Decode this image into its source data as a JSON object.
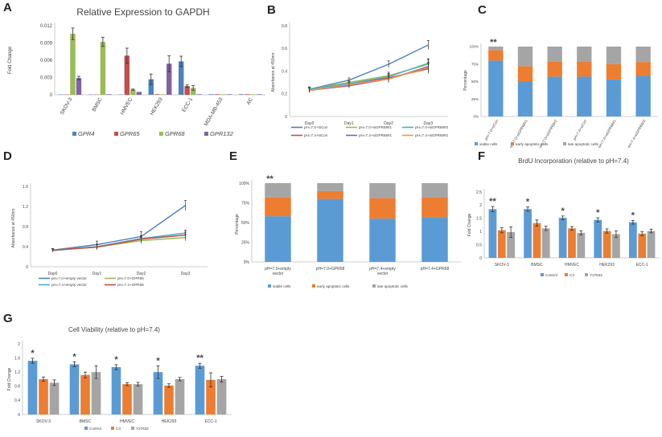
{
  "colors": {
    "blue": "#4e81bd",
    "red": "#c0504d",
    "green": "#9bbb59",
    "purple": "#8064a2",
    "orange": "#ed7d31",
    "gray": "#a5a5a5",
    "teal": "#4bacc6",
    "lgreen": "#70ad47",
    "axis": "#bfbfbf",
    "text": "#444444"
  },
  "chart_data": [
    {
      "panel": "A",
      "type": "bar",
      "title": "Relative Expression to GAPDH",
      "ylabel": "Fold Change",
      "ylim": [
        0,
        0.012
      ],
      "yticks": [
        0,
        0.003,
        0.006,
        0.009,
        0.012
      ],
      "yticklabels": [
        "0",
        "0.003",
        "0.006",
        "0.009",
        "0.012"
      ],
      "categories": [
        "SKOV-3",
        "BMSC",
        "HMVEC",
        "HEK293",
        "ECC-1",
        "MDA-MB-453",
        "AC"
      ],
      "series": [
        {
          "name": "GPR4",
          "color": "#4e81bd",
          "values": [
            5e-05,
            5e-05,
            5e-05,
            0.0027,
            0.0058,
            0.0001,
            0.0001
          ],
          "errors": [
            0,
            0,
            0,
            0.0009,
            0.0009,
            0,
            0
          ]
        },
        {
          "name": "GPR65",
          "color": "#c0504d",
          "values": [
            5e-05,
            5e-05,
            0.0068,
            0.0001,
            0.0015,
            0.0001,
            0.0001
          ],
          "errors": [
            0,
            0,
            0.0013,
            0,
            0.0002,
            0,
            0
          ]
        },
        {
          "name": "GPR68",
          "color": "#9bbb59",
          "values": [
            0.0106,
            0.0092,
            0.0009,
            0.0001,
            0.0012,
            0.0001,
            0.0001
          ],
          "errors": [
            0.001,
            0.0008,
            0.0001,
            0,
            0.0004,
            0,
            0
          ]
        },
        {
          "name": "GPR132",
          "color": "#8064a2",
          "values": [
            0.0029,
            0.0001,
            0.0005,
            0.0054,
            0.0001,
            0.0001,
            0.0001
          ],
          "errors": [
            0.0003,
            0,
            0,
            0.0014,
            0,
            0,
            0
          ]
        }
      ]
    },
    {
      "panel": "B",
      "type": "line",
      "ylabel": "Absorbance at 450nm",
      "ylim": [
        0,
        0.8
      ],
      "yticks": [
        0,
        0.2,
        0.4,
        0.6,
        0.8
      ],
      "yticklabels": [
        "0",
        "0.2",
        "0.4",
        "0.6",
        "0.8"
      ],
      "categories": [
        "Day0",
        "Day1",
        "Day2",
        "Day3"
      ],
      "series": [
        {
          "name": "pH=7.0+siCon",
          "color": "#4e81bd",
          "values": [
            0.24,
            0.32,
            0.46,
            0.63
          ],
          "errors": [
            0.02,
            0.02,
            0.03,
            0.04
          ]
        },
        {
          "name": "pH=7.4+siCon",
          "color": "#c0504d",
          "values": [
            0.23,
            0.28,
            0.34,
            0.42
          ],
          "errors": [
            0.02,
            0.02,
            0.03,
            0.04
          ]
        },
        {
          "name": "pH=7.0+siGPR68#1",
          "color": "#9bbb59",
          "values": [
            0.24,
            0.3,
            0.36,
            0.46
          ],
          "errors": [
            0.02,
            0.02,
            0.03,
            0.04
          ]
        },
        {
          "name": "pH=7.4+siGPR68#1",
          "color": "#8064a2",
          "values": [
            0.23,
            0.27,
            0.33,
            0.44
          ],
          "errors": [
            0.02,
            0.02,
            0.03,
            0.04
          ]
        },
        {
          "name": "pH=7.0+siGPR68#2",
          "color": "#4bacc6",
          "values": [
            0.24,
            0.29,
            0.35,
            0.47
          ],
          "errors": [
            0.02,
            0.02,
            0.03,
            0.04
          ]
        },
        {
          "name": "pH=7.4+siGPR68#2",
          "color": "#f79646",
          "values": [
            0.23,
            0.28,
            0.33,
            0.43
          ],
          "errors": [
            0.02,
            0.02,
            0.03,
            0.04
          ]
        }
      ]
    },
    {
      "panel": "C",
      "type": "bar",
      "stacked": true,
      "ylabel": "Percentage",
      "ylim": [
        0,
        100
      ],
      "yticks": [
        0,
        25,
        50,
        75,
        100
      ],
      "yticklabels": [
        "0%",
        "25%",
        "50%",
        "75%",
        "100%"
      ],
      "categories": [
        "pH=7.0+siCon",
        "pH=7.0+siGPR68#1",
        "pH=7.0+siGPR68#2",
        "pH=7.4+siCon",
        "pH=7.4+siGPR68#1",
        "pH=7.4+siGPR68#2"
      ],
      "annotations": [
        {
          "category": 0,
          "text": "**"
        }
      ],
      "series": [
        {
          "name": "viable cells",
          "color": "#5b9bd5",
          "values": [
            80,
            50,
            57,
            57,
            53,
            58
          ]
        },
        {
          "name": "early apoptotic cells",
          "color": "#ed7d31",
          "values": [
            15,
            22,
            22,
            22,
            22,
            20
          ]
        },
        {
          "name": "late apoptotic cells",
          "color": "#a5a5a5",
          "values": [
            5,
            28,
            21,
            21,
            25,
            22
          ]
        }
      ]
    },
    {
      "panel": "D",
      "type": "line",
      "ylabel": "Absorbance at 450nm",
      "ylim": [
        0,
        1.6
      ],
      "yticks": [
        0,
        0.4,
        0.8,
        1.2,
        1.6
      ],
      "yticklabels": [
        "0",
        "0.4",
        "0.8",
        "1.2",
        "1.6"
      ],
      "categories": [
        "Day0",
        "Day1",
        "Day2",
        "Day3"
      ],
      "series": [
        {
          "name": "pH=7.0+empty vector",
          "color": "#4e81bd",
          "values": [
            0.33,
            0.44,
            0.6,
            1.22
          ],
          "errors": [
            0.03,
            0.07,
            0.1,
            0.1
          ]
        },
        {
          "name": "pH=7.4+empty vector",
          "color": "#4bacc6",
          "values": [
            0.32,
            0.4,
            0.56,
            0.67
          ],
          "errors": [
            0.03,
            0.05,
            0.06,
            0.06
          ]
        },
        {
          "name": "pH=7.0+GPR68",
          "color": "#9bbb59",
          "values": [
            0.33,
            0.39,
            0.52,
            0.58
          ],
          "errors": [
            0.03,
            0.05,
            0.06,
            0.06
          ]
        },
        {
          "name": "pH=7.4+GPR68",
          "color": "#c0504d",
          "values": [
            0.33,
            0.39,
            0.55,
            0.63
          ],
          "errors": [
            0.03,
            0.05,
            0.06,
            0.06
          ]
        }
      ]
    },
    {
      "panel": "E",
      "type": "bar",
      "stacked": true,
      "ylabel": "Percentage",
      "ylim": [
        0,
        100
      ],
      "yticks": [
        0,
        25,
        50,
        75,
        100
      ],
      "yticklabels": [
        "0%",
        "25%",
        "50%",
        "75%",
        "100%"
      ],
      "categories": [
        "pH=7.0+empty vector",
        "pH=7.0+GPR68",
        "pH=7.4+empty vector",
        "pH=7.4+GPR68"
      ],
      "annotations": [
        {
          "category": 0,
          "text": "**"
        }
      ],
      "series": [
        {
          "name": "viable cells",
          "color": "#5b9bd5",
          "values": [
            58,
            80,
            55,
            57
          ]
        },
        {
          "name": "early apoptotic cells",
          "color": "#ed7d31",
          "values": [
            24,
            10,
            26,
            25
          ]
        },
        {
          "name": "late apoptotic cells",
          "color": "#a5a5a5",
          "values": [
            18,
            10,
            19,
            18
          ]
        }
      ]
    },
    {
      "panel": "F",
      "type": "bar",
      "title": "BrdU Incorporation (relative to pH=7.4)",
      "ylabel": "Fold Change",
      "ylim": [
        0,
        2.5
      ],
      "yticks": [
        0,
        0.5,
        1,
        1.5,
        2,
        2.5
      ],
      "yticklabels": [
        "0",
        "0.5",
        "1",
        "1.5",
        "2",
        "2.5"
      ],
      "categories": [
        "SKOV-3",
        "BMSC",
        "HMVEC",
        "HEK293",
        "ECC-1"
      ],
      "annotations": [
        {
          "category": 0,
          "text": "**"
        },
        {
          "category": 1,
          "text": "*"
        },
        {
          "category": 2,
          "text": "*"
        },
        {
          "category": 3,
          "text": "*"
        },
        {
          "category": 4,
          "text": "*"
        }
      ],
      "series": [
        {
          "name": "Control",
          "color": "#5b9bd5",
          "values": [
            1.85,
            1.85,
            1.52,
            1.44,
            1.35
          ],
          "errors": [
            0.1,
            0.08,
            0.07,
            0.08,
            0.07
          ]
        },
        {
          "name": "C3",
          "color": "#ed7d31",
          "values": [
            1.05,
            1.32,
            1.12,
            1.02,
            0.92
          ],
          "errors": [
            0.1,
            0.12,
            0.07,
            0.08,
            0.08
          ]
        },
        {
          "name": "Y27632",
          "color": "#a5a5a5",
          "values": [
            0.98,
            1.12,
            0.95,
            0.9,
            1.02
          ],
          "errors": [
            0.2,
            0.08,
            0.08,
            0.12,
            0.07
          ]
        }
      ]
    },
    {
      "panel": "G",
      "type": "bar",
      "title": "Cell Viability (relative to pH=7.4)",
      "ylabel": "Fold Change",
      "ylim": [
        0,
        2
      ],
      "yticks": [
        0,
        0.4,
        0.8,
        1.2,
        1.6,
        2
      ],
      "yticklabels": [
        "0",
        "0.4",
        "0.8",
        "1.2",
        "1.6",
        "2"
      ],
      "categories": [
        "SKOV-3",
        "BMSC",
        "HMVEC",
        "HEK293",
        "ECC-1"
      ],
      "annotations": [
        {
          "category": 0,
          "text": "*"
        },
        {
          "category": 1,
          "text": "*"
        },
        {
          "category": 2,
          "text": "*"
        },
        {
          "category": 3,
          "text": "*"
        },
        {
          "category": 4,
          "text": "**"
        }
      ],
      "series": [
        {
          "name": "Control",
          "color": "#5b9bd5",
          "values": [
            1.52,
            1.42,
            1.34,
            1.2,
            1.38
          ],
          "errors": [
            0.07,
            0.07,
            0.07,
            0.18,
            0.07
          ]
        },
        {
          "name": "C3",
          "color": "#ed7d31",
          "values": [
            1.0,
            1.12,
            0.86,
            0.82,
            0.98
          ],
          "errors": [
            0.06,
            0.08,
            0.04,
            0.05,
            0.2
          ]
        },
        {
          "name": "Y27632",
          "color": "#a5a5a5",
          "values": [
            0.9,
            1.2,
            0.86,
            1.0,
            1.0
          ],
          "errors": [
            0.08,
            0.18,
            0.05,
            0.05,
            0.08
          ]
        }
      ]
    }
  ]
}
